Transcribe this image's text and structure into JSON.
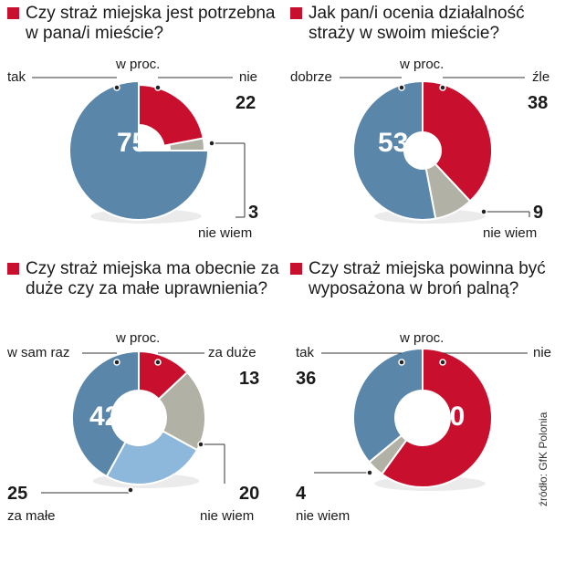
{
  "colors": {
    "red": "#c8102e",
    "blue": "#5a86aa",
    "gray": "#b1b1a5",
    "lightblue": "#8db8db",
    "accent": "#c8102e"
  },
  "unit_label": "w proc.",
  "source": "źródło: GfK Polonia",
  "chart_data": [
    {
      "type": "pie",
      "title": "Czy straż miejska jest potrzebna w pana/i mieście?",
      "unit": "w proc.",
      "slices": [
        {
          "label": "nie",
          "value": 22,
          "color": "#c8102e"
        },
        {
          "label": "nie wiem",
          "value": 3,
          "color": "#b1b1a5"
        },
        {
          "label": "tak",
          "value": 75,
          "color": "#5a86aa"
        }
      ]
    },
    {
      "type": "pie",
      "title": "Jak pan/i ocenia działalność straży w swoim mieście?",
      "unit": "w proc.",
      "slices": [
        {
          "label": "źle",
          "value": 38,
          "color": "#c8102e"
        },
        {
          "label": "nie wiem",
          "value": 9,
          "color": "#b1b1a5"
        },
        {
          "label": "dobrze",
          "value": 53,
          "color": "#5a86aa"
        }
      ]
    },
    {
      "type": "pie",
      "title": "Czy straż miejska ma obecnie za duże czy za małe uprawnienia?",
      "unit": "w proc.",
      "slices": [
        {
          "label": "za duże",
          "value": 13,
          "color": "#c8102e"
        },
        {
          "label": "nie wiem",
          "value": 20,
          "color": "#b1b1a5"
        },
        {
          "label": "za małe",
          "value": 25,
          "color": "#8db8db"
        },
        {
          "label": "w sam raz",
          "value": 42,
          "color": "#5a86aa"
        }
      ]
    },
    {
      "type": "pie",
      "title": "Czy straż miejska powinna być wyposażona w broń palną?",
      "unit": "w proc.",
      "slices": [
        {
          "label": "nie",
          "value": 60,
          "color": "#c8102e"
        },
        {
          "label": "nie wiem",
          "value": 4,
          "color": "#b1b1a5"
        },
        {
          "label": "tak",
          "value": 36,
          "color": "#5a86aa"
        }
      ]
    }
  ]
}
